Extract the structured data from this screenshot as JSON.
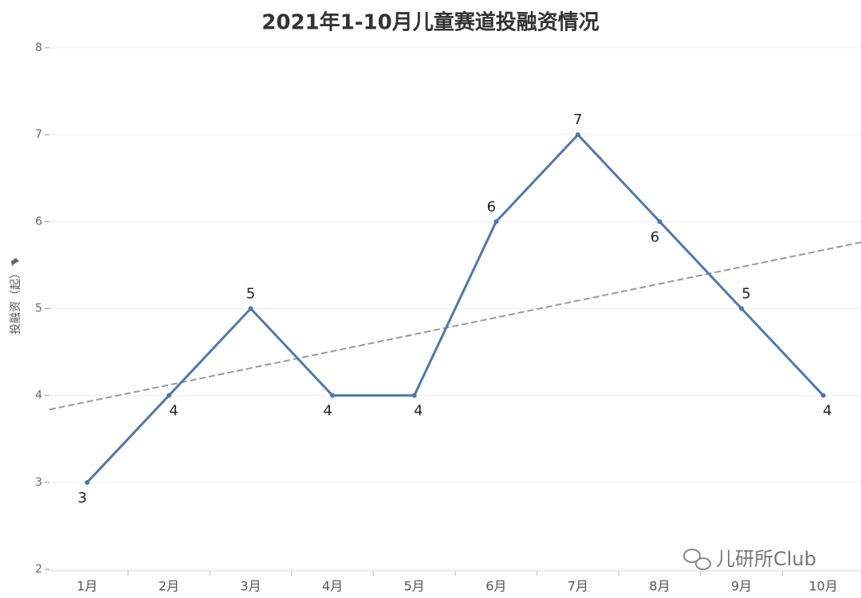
{
  "chart_data": {
    "type": "line",
    "title": "2021年1-10月儿童赛道投融资情况",
    "y_label": "投融资（起）",
    "categories": [
      "1月",
      "2月",
      "3月",
      "4月",
      "5月",
      "6月",
      "7月",
      "8月",
      "9月",
      "10月"
    ],
    "series": [
      {
        "name": "投融资（起）",
        "color": "#4e79a7",
        "values": [
          3,
          4,
          5,
          4,
          4,
          6,
          7,
          6,
          5,
          4
        ]
      }
    ],
    "ylim": [
      2,
      8
    ],
    "yticks": [
      2,
      3,
      4,
      5,
      6,
      7,
      8
    ],
    "grid": true,
    "trend_line": true,
    "watermark": "儿研所Club"
  }
}
